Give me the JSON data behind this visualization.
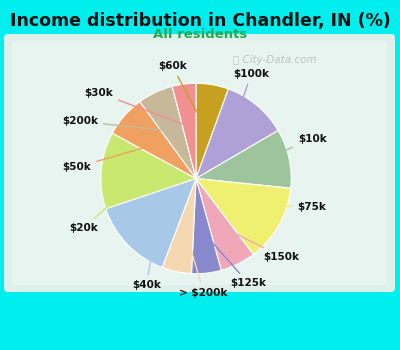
{
  "title": "Income distribution in Chandler, IN (%)",
  "subtitle": "All residents",
  "title_color": "#111111",
  "subtitle_color": "#22aa55",
  "background_outer": "#00eeee",
  "background_inner_color1": "#d8efe8",
  "background_inner_color2": "#eaf5f0",
  "watermark": "City-Data.com",
  "labels": [
    "$60k",
    "$100k",
    "$10k",
    "$75k",
    "$150k",
    "$125k",
    "> $200k",
    "$40k",
    "$20k",
    "$50k",
    "$200k",
    "$30k"
  ],
  "values": [
    5.5,
    11,
    10,
    13,
    6,
    5,
    5,
    14,
    13,
    7,
    6,
    4
  ],
  "colors": [
    "#c8a020",
    "#b0a0d8",
    "#9ec49e",
    "#f0f070",
    "#f0a8b8",
    "#8888cc",
    "#f5d8b0",
    "#a8c8e8",
    "#c8e870",
    "#f0a060",
    "#c8b89a",
    "#f09090"
  ]
}
